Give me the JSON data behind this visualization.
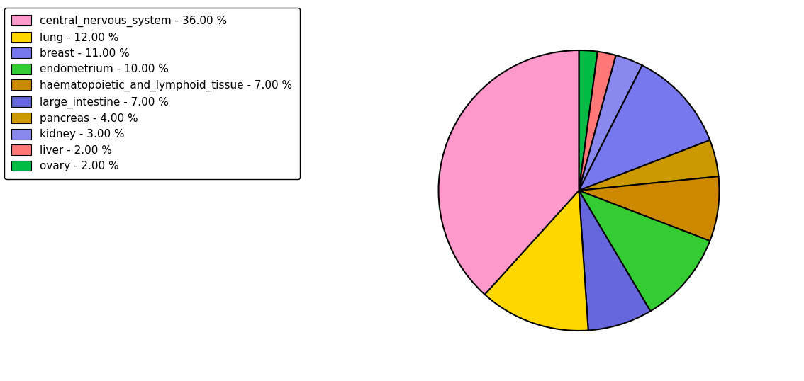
{
  "labels": [
    "central_nervous_system",
    "lung",
    "breast",
    "endometrium",
    "haematopoietic_and_lymphoid_tissue",
    "large_intestine",
    "pancreas",
    "kidney",
    "liver",
    "ovary"
  ],
  "values": [
    36,
    12,
    11,
    10,
    7,
    7,
    4,
    3,
    2,
    2
  ],
  "colors": [
    "#FF99CC",
    "#FFD700",
    "#7777EE",
    "#33CC33",
    "#CC8800",
    "#6666DD",
    "#CC9900",
    "#8888EE",
    "#FF7777",
    "#00BB44"
  ],
  "legend_labels": [
    "central_nervous_system - 36.00 %",
    "lung - 12.00 %",
    "breast - 11.00 %",
    "endometrium - 10.00 %",
    "haematopoietic_and_lymphoid_tissue - 7.00 %",
    "large_intestine - 7.00 %",
    "pancreas - 4.00 %",
    "kidney - 3.00 %",
    "liver - 2.00 %",
    "ovary - 2.00 %"
  ],
  "pie_order": [
    "ovary",
    "liver",
    "kidney",
    "breast",
    "pancreas",
    "haematopoietic_and_lymphoid_tissue",
    "endometrium",
    "large_intestine",
    "lung",
    "central_nervous_system"
  ],
  "pie_values": [
    2,
    2,
    3,
    11,
    4,
    7,
    10,
    7,
    12,
    36
  ],
  "pie_colors": [
    "#00BB44",
    "#FF7777",
    "#8888EE",
    "#7777EE",
    "#CC9900",
    "#CC8800",
    "#33CC33",
    "#6666DD",
    "#FFD700",
    "#FF99CC"
  ],
  "background_color": "#ffffff",
  "figsize": [
    11.34,
    5.38
  ],
  "dpi": 100
}
